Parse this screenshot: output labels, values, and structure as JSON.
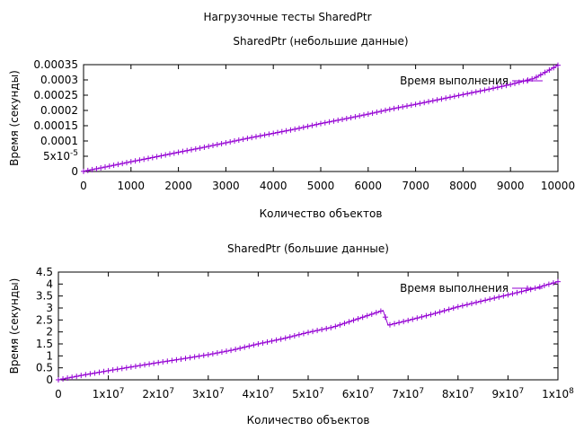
{
  "figure_title": "Нагрузочные тесты SharedPtr",
  "series_color": "#9400d3",
  "chart_data": [
    {
      "type": "line",
      "title": "SharedPtr (небольшие данные)",
      "xlabel": "Количество объектов",
      "ylabel": "Время (секунды)",
      "xlim": [
        0,
        10000
      ],
      "ylim": [
        0,
        0.00035
      ],
      "x_ticks": [
        0,
        1000,
        2000,
        3000,
        4000,
        5000,
        6000,
        7000,
        8000,
        9000,
        10000
      ],
      "x_tick_labels": [
        "0",
        "1000",
        "2000",
        "3000",
        "4000",
        "5000",
        "6000",
        "7000",
        "8000",
        "9000",
        "10000"
      ],
      "y_ticks": [
        0,
        5e-05,
        0.0001,
        0.00015,
        0.0002,
        0.00025,
        0.0003,
        0.00035
      ],
      "y_tick_labels": [
        "0",
        "5x10-5",
        "0.0001",
        "0.00015",
        "0.0002",
        "0.00025",
        "0.0003",
        "0.00035"
      ],
      "legend": "top-right",
      "grid": false,
      "series": [
        {
          "name": "Время выполнения",
          "color": "#9400d3",
          "x": [
            0,
            500,
            1000,
            1500,
            2000,
            2500,
            3000,
            3500,
            4000,
            4500,
            5000,
            5500,
            6000,
            6500,
            7000,
            7500,
            8000,
            8500,
            9000,
            9500,
            10000
          ],
          "y": [
            5e-07,
            1.6e-05,
            3.2e-05,
            4.7e-05,
            6.3e-05,
            7.8e-05,
            9.4e-05,
            0.00011,
            0.000125,
            0.00014,
            0.000157,
            0.000172,
            0.000188,
            0.000205,
            0.00022,
            0.000236,
            0.000252,
            0.000268,
            0.000285,
            0.000305,
            0.000348
          ]
        }
      ]
    },
    {
      "type": "line",
      "title": "SharedPtr (большие данные)",
      "xlabel": "Количество объектов",
      "ylabel": "Время (секунды)",
      "xlim": [
        0,
        100000000
      ],
      "ylim": [
        0,
        4.5
      ],
      "x_ticks": [
        0,
        10000000,
        20000000,
        30000000,
        40000000,
        50000000,
        60000000,
        70000000,
        80000000,
        90000000,
        100000000
      ],
      "x_tick_labels": [
        "0",
        "1x10",
        "2x10",
        "3x10",
        "4x10",
        "5x10",
        "6x10",
        "7x10",
        "8x10",
        "9x10",
        "1x10"
      ],
      "x_tick_exponents": [
        "",
        "7",
        "7",
        "7",
        "7",
        "7",
        "7",
        "7",
        "7",
        "7",
        "8"
      ],
      "y_ticks": [
        0,
        0.5,
        1,
        1.5,
        2,
        2.5,
        3,
        3.5,
        4,
        4.5
      ],
      "y_tick_labels": [
        "0",
        "0.5",
        "1",
        "1.5",
        "2",
        "2.5",
        "3",
        "3.5",
        "4",
        "4.5"
      ],
      "legend": "top-right",
      "grid": false,
      "series": [
        {
          "name": "Время выполнения",
          "color": "#9400d3",
          "x": [
            0,
            5000000,
            10000000,
            15000000,
            20000000,
            25000000,
            30000000,
            35000000,
            40000000,
            45000000,
            50000000,
            55000000,
            60000000,
            65000000,
            66000000,
            70000000,
            75000000,
            80000000,
            85000000,
            90000000,
            95000000,
            100000000
          ],
          "y": [
            0.0,
            0.2,
            0.38,
            0.55,
            0.72,
            0.88,
            1.05,
            1.25,
            1.5,
            1.72,
            1.98,
            2.2,
            2.55,
            2.9,
            2.28,
            2.48,
            2.75,
            3.05,
            3.3,
            3.55,
            3.8,
            4.1
          ]
        }
      ]
    }
  ]
}
